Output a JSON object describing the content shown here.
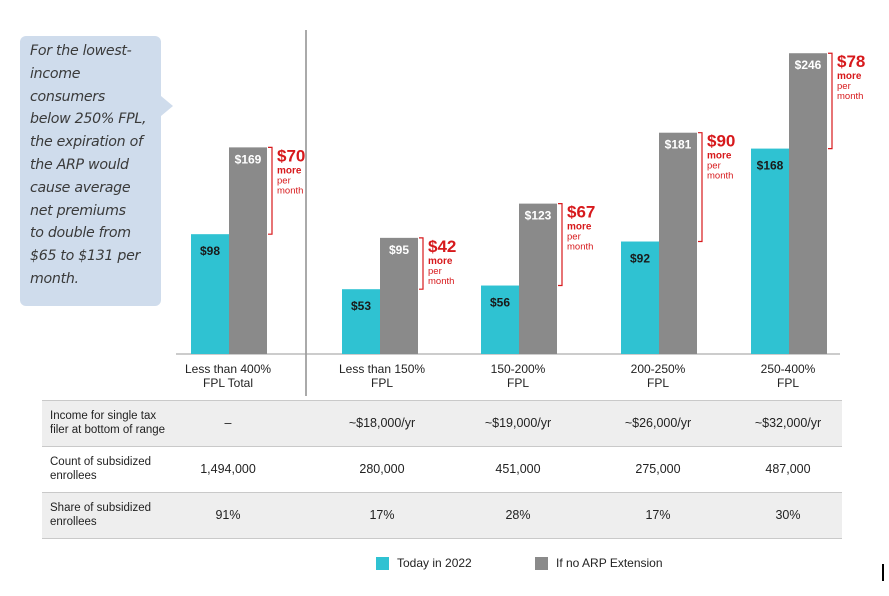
{
  "callout": {
    "lines": [
      "For the lowest-",
      "income",
      "consumers",
      "below 250% FPL,",
      "the expiration of",
      "the ARP would",
      "cause average",
      "net premiums",
      "to double from",
      "$65 to $131 per",
      "month."
    ]
  },
  "chart_data": {
    "type": "bar",
    "categories": [
      [
        "Less than 400%",
        "FPL Total"
      ],
      [
        "Less than 150%",
        "FPL"
      ],
      [
        "150-200%",
        "FPL"
      ],
      [
        "200-250%",
        "FPL"
      ],
      [
        "250-400%",
        "FPL"
      ]
    ],
    "series": [
      {
        "name": "Today in 2022",
        "color": "#2fc2d2",
        "values": [
          98,
          53,
          56,
          92,
          168
        ],
        "labels": [
          "$98",
          "$53",
          "$56",
          "$92",
          "$168"
        ]
      },
      {
        "name": "If no ARP Extension",
        "color": "#8a8a8a",
        "values": [
          169,
          95,
          123,
          181,
          246
        ],
        "labels": [
          "$169",
          "$95",
          "$123",
          "$181",
          "$246"
        ]
      }
    ],
    "differences": [
      {
        "amount": "$70",
        "line1": "more",
        "line2": "per",
        "line3": "month"
      },
      {
        "amount": "$42",
        "line1": "more",
        "line2": "per",
        "line3": "month"
      },
      {
        "amount": "$67",
        "line1": "more",
        "line2": "per",
        "line3": "month"
      },
      {
        "amount": "$90",
        "line1": "more",
        "line2": "per",
        "line3": "month"
      },
      {
        "amount": "$78",
        "line1": "more",
        "line2": "per",
        "line3": "month"
      }
    ],
    "ylim": [
      0,
      265
    ],
    "accent_color": "#d7191c"
  },
  "table": {
    "rows": [
      {
        "label": [
          "Income for single tax",
          "filer at bottom of range"
        ],
        "cells": [
          "–",
          "~$18,000/yr",
          "~$19,000/yr",
          "~$26,000/yr",
          "~$32,000/yr"
        ]
      },
      {
        "label": [
          "Count of subsidized",
          "enrollees"
        ],
        "cells": [
          "1,494,000",
          "280,000",
          "451,000",
          "275,000",
          "487,000"
        ]
      },
      {
        "label": [
          "Share of subsidized",
          "enrollees"
        ],
        "cells": [
          "91%",
          "17%",
          "28%",
          "17%",
          "30%"
        ]
      }
    ]
  },
  "legend": [
    {
      "label": "Today in 2022",
      "color": "#2fc2d2"
    },
    {
      "label": "If no ARP Extension",
      "color": "#8a8a8a"
    }
  ]
}
